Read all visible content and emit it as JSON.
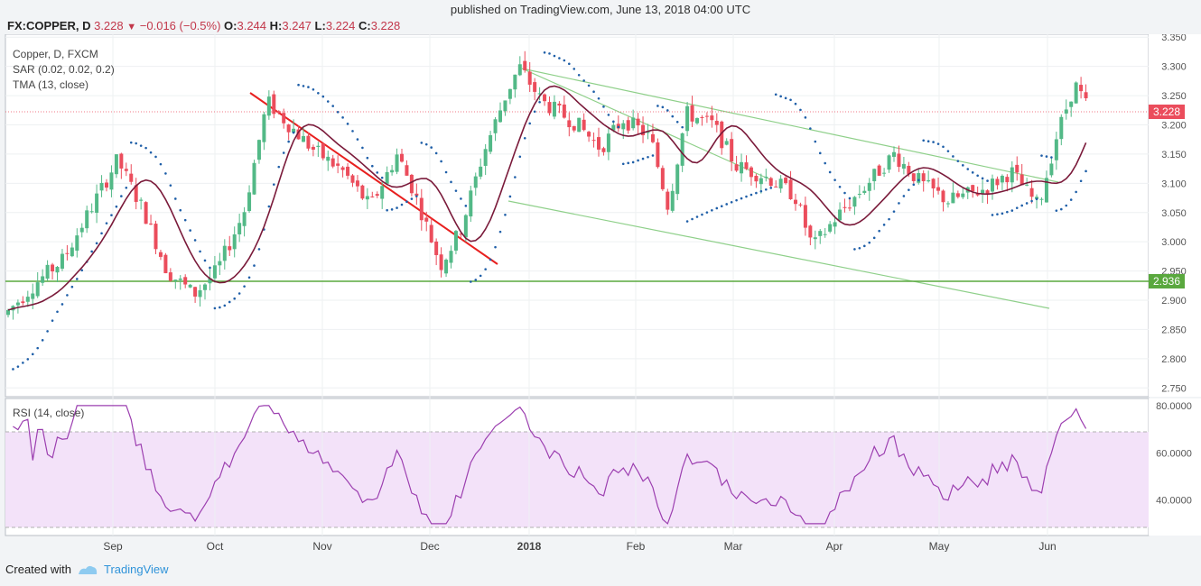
{
  "header": {
    "published": "published on TradingView.com, June 13, 2018 04:00 UTC",
    "symbol": "FX:COPPER, D",
    "last": "3.228",
    "change": "−0.016 (−0.5%)",
    "o_label": "O:",
    "o": "3.244",
    "h_label": "H:",
    "h": "3.247",
    "l_label": "L:",
    "l": "3.224",
    "c_label": "C:",
    "c": "3.228"
  },
  "legend": {
    "line1": "Copper, D, FXCM",
    "line2": "SAR (0.02, 0.02, 0.2)",
    "line3": "TMA (13, close)",
    "rsi": "RSI (14, close)"
  },
  "footer": {
    "created_with": "Created with",
    "brand": "TradingView"
  },
  "colors": {
    "up": "#53b987",
    "down": "#eb4d5c",
    "tma": "#7a1a3a",
    "sar": "#1f5fa8",
    "trend_red": "#e8201f",
    "channel": "#8fd08a",
    "hline": "#5aa83e",
    "rsi_line": "#9c3fb0",
    "rsi_band": "#f0dcf7"
  },
  "chart_data": [
    {
      "type": "candlestick",
      "title": "Copper, D, FXCM",
      "x_ticks": [
        "Sep",
        "Oct",
        "Nov",
        "Dec",
        "2018",
        "Feb",
        "Mar",
        "Apr",
        "May",
        "Jun"
      ],
      "y_ticks": [
        "3.350",
        "3.300",
        "3.250",
        "3.200",
        "3.150",
        "3.100",
        "3.050",
        "3.000",
        "2.950",
        "2.900",
        "2.850",
        "2.800",
        "2.750"
      ],
      "ylim": [
        2.735,
        3.355
      ],
      "last_price_label": "3.228",
      "horizontal_line_label": "2.936",
      "horizontal_line_value": 2.936,
      "indicators": [
        "SAR (0.02, 0.02, 0.2)",
        "TMA (13, close)"
      ],
      "close_approx": [
        {
          "month": "Aug",
          "close": 2.93
        },
        {
          "month": "Sep",
          "close": 3.13
        },
        {
          "month": "Sep",
          "close": 2.95
        },
        {
          "month": "Oct",
          "close": 2.93
        },
        {
          "month": "Oct",
          "close": 3.24
        },
        {
          "month": "Nov",
          "close": 3.16
        },
        {
          "month": "Nov",
          "close": 3.05
        },
        {
          "month": "Dec",
          "close": 2.95
        },
        {
          "month": "2018",
          "close": 3.3
        },
        {
          "month": "Feb",
          "close": 3.18
        },
        {
          "month": "Feb",
          "close": 3.05
        },
        {
          "month": "Mar",
          "close": 3.12
        },
        {
          "month": "Apr",
          "close": 2.98
        },
        {
          "month": "Apr",
          "close": 3.15
        },
        {
          "month": "May",
          "close": 3.07
        },
        {
          "month": "Jun",
          "close": 3.3
        },
        {
          "month": "Jun",
          "close": 3.228
        }
      ]
    },
    {
      "type": "line",
      "title": "RSI (14, close)",
      "y_ticks": [
        "80.0000",
        "60.0000",
        "40.0000"
      ],
      "ylim": [
        25,
        83
      ],
      "band": [
        30,
        70
      ]
    }
  ]
}
